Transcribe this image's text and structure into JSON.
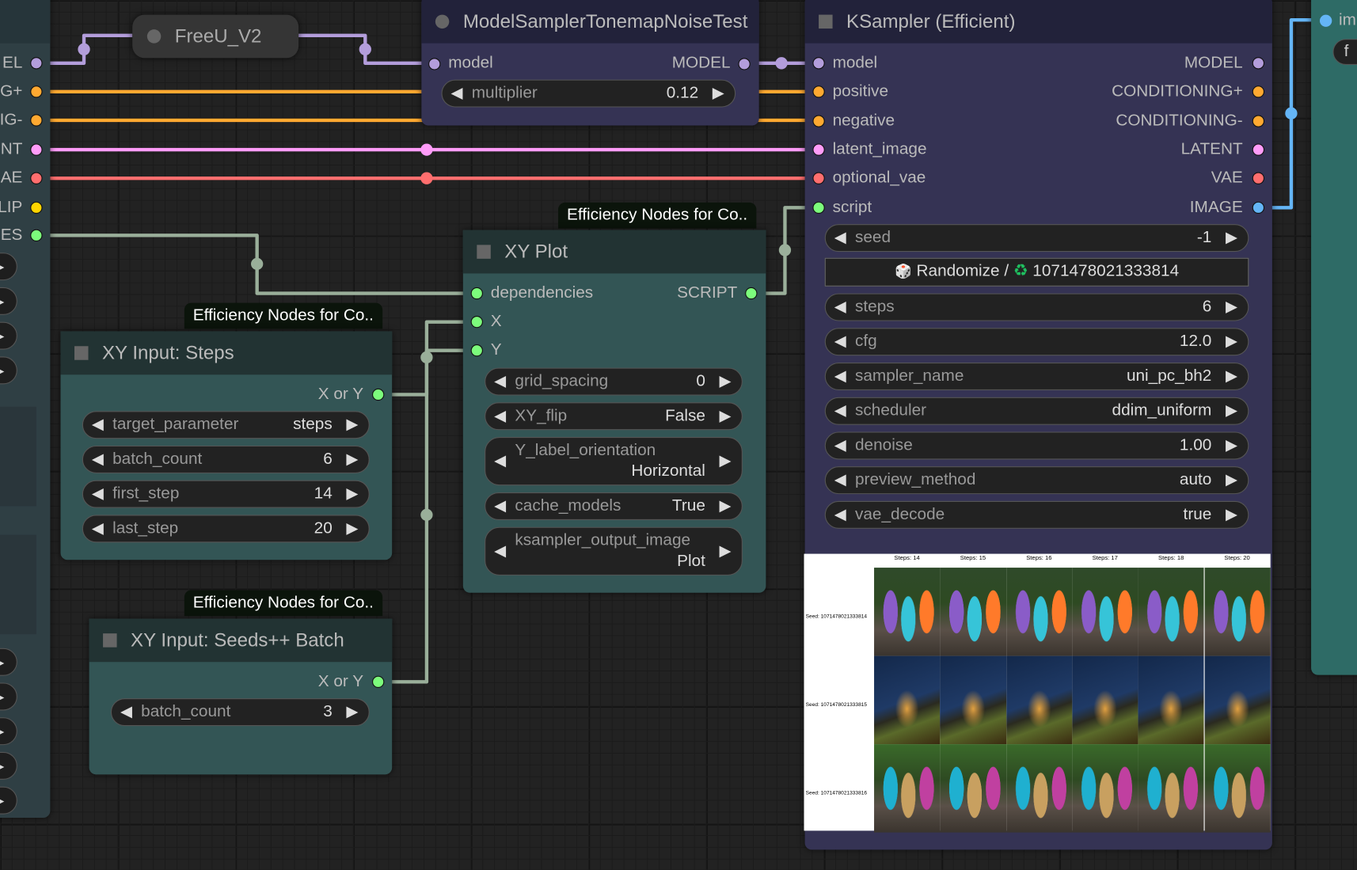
{
  "colors": {
    "model": "#b39ddb",
    "conditioning": "#ffa931",
    "latent": "#ff9cf9",
    "vae": "#ff6e6e",
    "clip": "#ffd500",
    "dependencies": "#7cfc7c",
    "image": "#64b5f6",
    "script_wire": "#9aaf9a"
  },
  "left_node": {
    "outputs": [
      "EL",
      "G+",
      "IG-",
      "NT",
      "AE",
      "LIP",
      "ES"
    ]
  },
  "freeu": {
    "title": "FreeU_V2"
  },
  "model_sampler": {
    "title": "ModelSamplerTonemapNoiseTest",
    "input": "model",
    "output": "MODEL",
    "widget": {
      "label": "multiplier",
      "value": "0.12"
    }
  },
  "ksampler": {
    "title": "KSampler (Efficient)",
    "inputs": [
      "model",
      "positive",
      "negative",
      "latent_image",
      "optional_vae",
      "script"
    ],
    "outputs": [
      "MODEL",
      "CONDITIONING+",
      "CONDITIONING-",
      "LATENT",
      "VAE",
      "IMAGE"
    ],
    "seed": {
      "label": "seed",
      "value": "-1"
    },
    "randomize": {
      "label": "Randomize /",
      "seed": "1071478021333814",
      "dice_icon": "🎲",
      "recycle_icon": "♻"
    },
    "widgets": [
      {
        "label": "steps",
        "value": "6"
      },
      {
        "label": "cfg",
        "value": "12.0"
      },
      {
        "label": "sampler_name",
        "value": "uni_pc_bh2"
      },
      {
        "label": "scheduler",
        "value": "ddim_uniform"
      },
      {
        "label": "denoise",
        "value": "1.00"
      },
      {
        "label": "preview_method",
        "value": "auto"
      },
      {
        "label": "vae_decode",
        "value": "true"
      }
    ],
    "preview": {
      "columns": [
        "Steps: 14",
        "Steps: 15",
        "Steps: 16",
        "Steps: 17",
        "Steps: 18",
        "Steps: 20"
      ],
      "rows": [
        "Seed: 1071478021333814",
        "Seed: 1071478021333815",
        "Seed: 1071478021333816"
      ]
    }
  },
  "xy_plot": {
    "badge": "Efficiency Nodes for Co..",
    "title": "XY Plot",
    "inputs": [
      "dependencies",
      "X",
      "Y"
    ],
    "output": "SCRIPT",
    "widgets": [
      {
        "label": "grid_spacing",
        "value": "0"
      },
      {
        "label": "XY_flip",
        "value": "False"
      },
      {
        "label": "Y_label_orientation",
        "value": "Horizontal"
      },
      {
        "label": "cache_models",
        "value": "True"
      },
      {
        "label": "ksampler_output_image",
        "value": "Plot"
      }
    ]
  },
  "xy_steps": {
    "badge": "Efficiency Nodes for Co..",
    "title": "XY Input: Steps",
    "output": "X or Y",
    "widgets": [
      {
        "label": "target_parameter",
        "value": "steps"
      },
      {
        "label": "batch_count",
        "value": "6"
      },
      {
        "label": "first_step",
        "value": "14"
      },
      {
        "label": "last_step",
        "value": "20"
      }
    ]
  },
  "xy_seeds": {
    "badge": "Efficiency Nodes for Co..",
    "title": "XY Input: Seeds++ Batch",
    "output": "X or Y",
    "widgets": [
      {
        "label": "batch_count",
        "value": "3"
      }
    ]
  },
  "right_node": {
    "input": "im",
    "button": "f"
  }
}
